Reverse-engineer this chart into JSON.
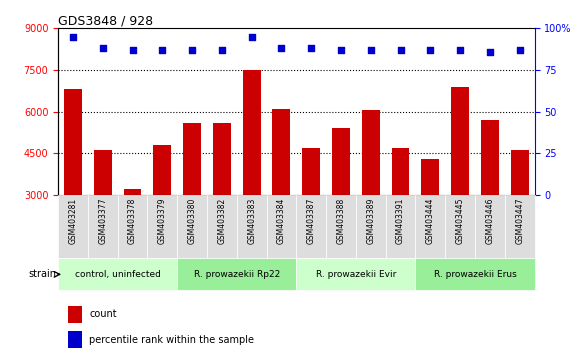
{
  "title": "GDS3848 / 928",
  "samples": [
    "GSM403281",
    "GSM403377",
    "GSM403378",
    "GSM403379",
    "GSM403380",
    "GSM403382",
    "GSM403383",
    "GSM403384",
    "GSM403387",
    "GSM403388",
    "GSM403389",
    "GSM403391",
    "GSM403444",
    "GSM403445",
    "GSM403446",
    "GSM403447"
  ],
  "counts": [
    6800,
    4600,
    3200,
    4800,
    5600,
    5600,
    7500,
    6100,
    4700,
    5400,
    6050,
    4700,
    4300,
    6900,
    5700,
    4600
  ],
  "percentiles": [
    95,
    88,
    87,
    87,
    87,
    87,
    95,
    88,
    88,
    87,
    87,
    87,
    87,
    87,
    86,
    87
  ],
  "groups": [
    {
      "label": "control, uninfected",
      "start": 0,
      "end": 3,
      "color": "#ccffcc"
    },
    {
      "label": "R. prowazekii Rp22",
      "start": 4,
      "end": 7,
      "color": "#99ff99"
    },
    {
      "label": "R. prowazekii Evir",
      "start": 8,
      "end": 11,
      "color": "#ccffcc"
    },
    {
      "label": "R. prowazekii Erus",
      "start": 12,
      "end": 15,
      "color": "#99ff99"
    }
  ],
  "ylim_left": [
    3000,
    9000
  ],
  "ylim_right": [
    0,
    100
  ],
  "yticks_left": [
    3000,
    4500,
    6000,
    7500,
    9000
  ],
  "yticks_right": [
    0,
    25,
    50,
    75,
    100
  ],
  "bar_color": "#cc0000",
  "dot_color": "#0000cc",
  "background_color": "#ffffff",
  "label_area_color": "#dddddd",
  "grid_color": "#000000",
  "strain_label": "strain"
}
